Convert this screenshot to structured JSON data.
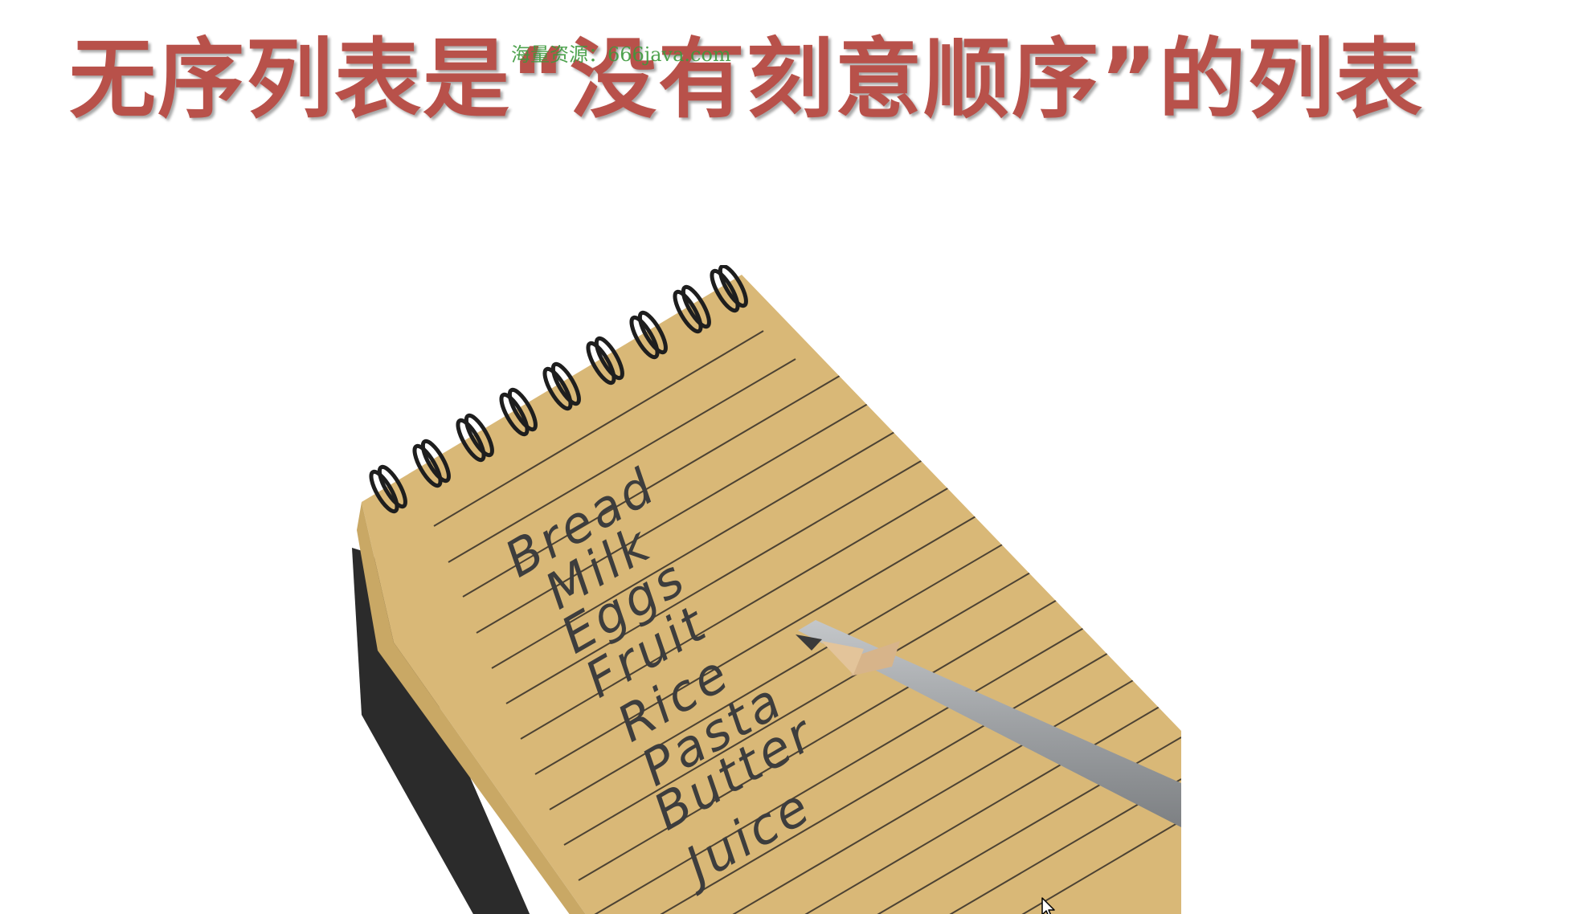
{
  "slide": {
    "title": "无序列表是“没有刻意顺序”的列表",
    "watermark": "海量资源：666java.com"
  },
  "notepad": {
    "items": [
      "Bread",
      "Milk",
      "Eggs",
      "Fruit",
      "Rice",
      "Pasta",
      "Butter",
      "Juice"
    ]
  },
  "colors": {
    "title": "#b8514a",
    "watermark": "#3c9a3c",
    "paper": "#d9b877",
    "handwriting": "#3d3d3d",
    "pencil_body": "#9a9da0"
  },
  "icons": {
    "cursor": "mouse-pointer-icon",
    "spiral": "spiral-binding"
  }
}
